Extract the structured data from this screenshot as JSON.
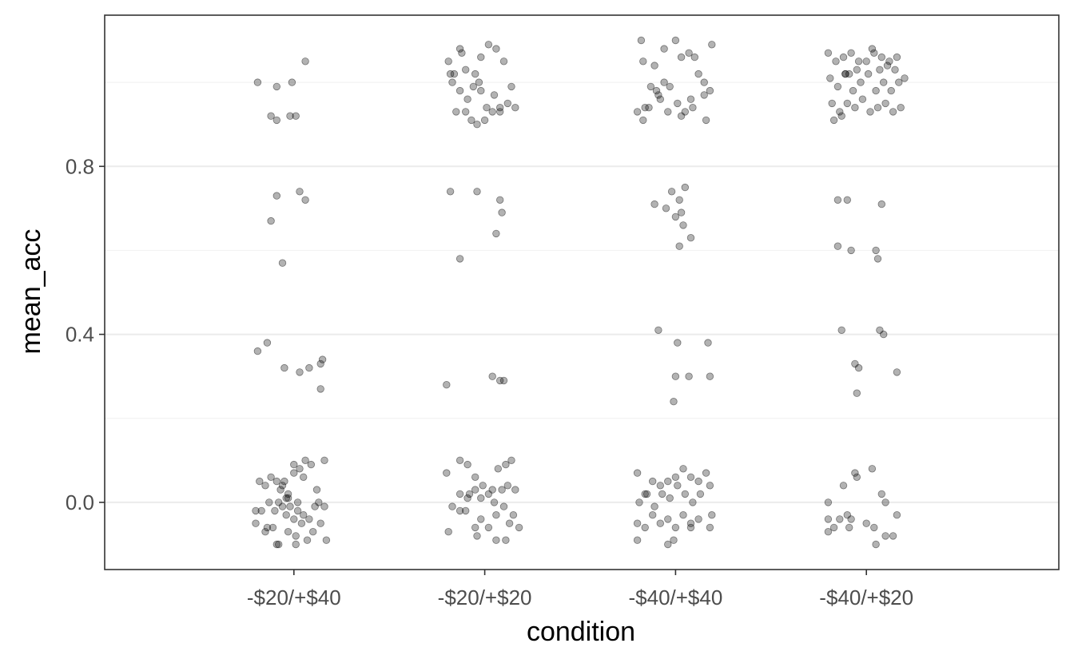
{
  "chart_data": {
    "type": "scatter",
    "xlabel": "condition",
    "ylabel": "mean_acc",
    "categories": [
      "-$20/+$40",
      "-$20/+$20",
      "-$40/+$40",
      "-$40/+$20"
    ],
    "x_jitter_unit": "category offset",
    "ylim": [
      -0.16,
      1.16
    ],
    "yticks": [
      0.0,
      0.4,
      0.8
    ],
    "y_minor_gridlines": [
      0.2,
      0.6,
      1.0
    ],
    "grid": true,
    "point_color": "#000000",
    "point_alpha": 0.3,
    "panel_border_color": "#333333",
    "major_grid_color": "#ebebeb",
    "minor_grid_color": "#f3f3f3",
    "series": [
      {
        "category": "-$20/+$40",
        "points": [
          [
            -0.19,
            1.0
          ],
          [
            0.06,
            1.05
          ],
          [
            -0.09,
            0.99
          ],
          [
            -0.01,
            1.0
          ],
          [
            -0.12,
            0.92
          ],
          [
            -0.09,
            0.91
          ],
          [
            -0.02,
            0.92
          ],
          [
            0.01,
            0.92
          ],
          [
            -0.09,
            0.73
          ],
          [
            0.03,
            0.74
          ],
          [
            0.06,
            0.72
          ],
          [
            -0.12,
            0.67
          ],
          [
            -0.06,
            0.57
          ],
          [
            -0.19,
            0.36
          ],
          [
            -0.14,
            0.38
          ],
          [
            -0.05,
            0.32
          ],
          [
            0.03,
            0.31
          ],
          [
            0.08,
            0.32
          ],
          [
            0.14,
            0.33
          ],
          [
            0.15,
            0.34
          ],
          [
            0.14,
            0.27
          ],
          [
            -0.2,
            -0.02
          ],
          [
            -0.18,
            0.05
          ],
          [
            -0.15,
            0.04
          ],
          [
            -0.12,
            0.06
          ],
          [
            -0.09,
            0.05
          ],
          [
            -0.07,
            0.03
          ],
          [
            -0.05,
            0.05
          ],
          [
            -0.03,
            0.02
          ],
          [
            0.0,
            0.09
          ],
          [
            0.03,
            0.08
          ],
          [
            0.06,
            0.1
          ],
          [
            0.09,
            0.09
          ],
          [
            0.16,
            0.1
          ],
          [
            -0.17,
            -0.02
          ],
          [
            -0.13,
            0.0
          ],
          [
            -0.1,
            -0.02
          ],
          [
            -0.08,
            0.0
          ],
          [
            -0.06,
            -0.01
          ],
          [
            -0.04,
            -0.03
          ],
          [
            -0.02,
            -0.01
          ],
          [
            0.0,
            -0.04
          ],
          [
            0.02,
            -0.02
          ],
          [
            0.05,
            -0.03
          ],
          [
            0.08,
            -0.04
          ],
          [
            0.11,
            -0.01
          ],
          [
            0.14,
            -0.05
          ],
          [
            0.16,
            -0.01
          ],
          [
            -0.2,
            -0.05
          ],
          [
            -0.15,
            -0.07
          ],
          [
            -0.11,
            -0.06
          ],
          [
            -0.08,
            -0.1
          ],
          [
            -0.03,
            -0.07
          ],
          [
            0.01,
            -0.08
          ],
          [
            0.04,
            -0.05
          ],
          [
            0.07,
            -0.09
          ],
          [
            0.1,
            -0.07
          ],
          [
            0.13,
            0.0
          ],
          [
            0.17,
            -0.09
          ],
          [
            -0.06,
            0.04
          ],
          [
            -0.03,
            0.01
          ],
          [
            0.0,
            0.07
          ],
          [
            -0.09,
            -0.1
          ],
          [
            0.01,
            -0.1
          ],
          [
            0.05,
            0.06
          ],
          [
            0.12,
            0.03
          ],
          [
            -0.14,
            -0.06
          ],
          [
            -0.04,
            0.01
          ],
          [
            0.02,
            0.0
          ]
        ]
      },
      {
        "category": "-$20/+$20",
        "points": [
          [
            -0.19,
            1.05
          ],
          [
            -0.16,
            1.02
          ],
          [
            -0.12,
            1.07
          ],
          [
            -0.1,
            1.03
          ],
          [
            -0.05,
            1.02
          ],
          [
            -0.02,
            1.06
          ],
          [
            0.02,
            1.09
          ],
          [
            0.06,
            1.08
          ],
          [
            0.1,
            1.05
          ],
          [
            0.14,
            0.99
          ],
          [
            -0.17,
            1.0
          ],
          [
            -0.13,
            0.98
          ],
          [
            -0.09,
            0.96
          ],
          [
            -0.06,
            0.99
          ],
          [
            -0.02,
            0.98
          ],
          [
            0.01,
            0.94
          ],
          [
            0.05,
            0.97
          ],
          [
            0.08,
            0.94
          ],
          [
            0.12,
            0.95
          ],
          [
            0.16,
            0.94
          ],
          [
            -0.15,
            0.93
          ],
          [
            -0.1,
            0.93
          ],
          [
            -0.07,
            0.91
          ],
          [
            -0.04,
            0.9
          ],
          [
            0.0,
            0.91
          ],
          [
            0.04,
            0.93
          ],
          [
            -0.13,
            1.08
          ],
          [
            -0.18,
            1.02
          ],
          [
            -0.03,
            1.0
          ],
          [
            0.08,
            0.93
          ],
          [
            -0.18,
            0.74
          ],
          [
            -0.04,
            0.74
          ],
          [
            0.08,
            0.72
          ],
          [
            0.09,
            0.69
          ],
          [
            0.06,
            0.64
          ],
          [
            -0.13,
            0.58
          ],
          [
            -0.2,
            0.28
          ],
          [
            0.04,
            0.3
          ],
          [
            0.08,
            0.29
          ],
          [
            0.1,
            0.29
          ],
          [
            -0.2,
            0.07
          ],
          [
            -0.13,
            0.1
          ],
          [
            -0.09,
            0.09
          ],
          [
            -0.05,
            0.06
          ],
          [
            -0.01,
            0.04
          ],
          [
            0.04,
            0.03
          ],
          [
            0.07,
            0.08
          ],
          [
            0.11,
            0.09
          ],
          [
            0.14,
            0.1
          ],
          [
            -0.17,
            -0.01
          ],
          [
            -0.13,
            0.02
          ],
          [
            -0.09,
            0.01
          ],
          [
            -0.05,
            0.03
          ],
          [
            -0.02,
            0.01
          ],
          [
            0.02,
            0.02
          ],
          [
            0.05,
            0.0
          ],
          [
            0.09,
            0.03
          ],
          [
            0.12,
            0.04
          ],
          [
            0.16,
            0.03
          ],
          [
            -0.19,
            -0.07
          ],
          [
            -0.13,
            -0.02
          ],
          [
            -0.1,
            -0.02
          ],
          [
            -0.05,
            -0.06
          ],
          [
            -0.02,
            -0.04
          ],
          [
            0.02,
            -0.06
          ],
          [
            0.06,
            -0.03
          ],
          [
            0.1,
            -0.01
          ],
          [
            0.13,
            -0.05
          ],
          [
            0.18,
            -0.06
          ],
          [
            -0.04,
            -0.08
          ],
          [
            0.06,
            -0.09
          ],
          [
            0.11,
            -0.09
          ],
          [
            0.15,
            -0.03
          ],
          [
            -0.08,
            0.02
          ]
        ]
      },
      {
        "category": "-$40/+$40",
        "points": [
          [
            -0.18,
            1.1
          ],
          [
            -0.17,
            1.05
          ],
          [
            -0.11,
            1.04
          ],
          [
            -0.06,
            1.08
          ],
          [
            0.0,
            1.1
          ],
          [
            0.03,
            1.06
          ],
          [
            0.07,
            1.07
          ],
          [
            0.1,
            1.06
          ],
          [
            0.19,
            1.09
          ],
          [
            -0.2,
            0.93
          ],
          [
            -0.16,
            0.94
          ],
          [
            -0.13,
            0.99
          ],
          [
            -0.09,
            0.97
          ],
          [
            -0.06,
            1.0
          ],
          [
            -0.03,
            0.99
          ],
          [
            0.01,
            0.95
          ],
          [
            0.05,
            0.93
          ],
          [
            0.09,
            0.94
          ],
          [
            0.12,
            1.02
          ],
          [
            0.15,
            1.0
          ],
          [
            -0.17,
            0.91
          ],
          [
            -0.14,
            0.94
          ],
          [
            -0.1,
            0.98
          ],
          [
            -0.04,
            0.93
          ],
          [
            0.03,
            0.92
          ],
          [
            0.08,
            0.96
          ],
          [
            0.15,
            0.97
          ],
          [
            0.16,
            0.91
          ],
          [
            -0.08,
            0.96
          ],
          [
            0.18,
            0.98
          ],
          [
            -0.11,
            0.71
          ],
          [
            -0.05,
            0.7
          ],
          [
            -0.02,
            0.74
          ],
          [
            0.02,
            0.72
          ],
          [
            0.05,
            0.75
          ],
          [
            0.0,
            0.68
          ],
          [
            0.03,
            0.69
          ],
          [
            0.04,
            0.66
          ],
          [
            0.08,
            0.63
          ],
          [
            0.02,
            0.61
          ],
          [
            -0.09,
            0.41
          ],
          [
            0.01,
            0.38
          ],
          [
            0.17,
            0.38
          ],
          [
            0.0,
            0.3
          ],
          [
            0.07,
            0.3
          ],
          [
            0.18,
            0.3
          ],
          [
            -0.01,
            0.24
          ],
          [
            -0.2,
            0.07
          ],
          [
            -0.16,
            0.02
          ],
          [
            -0.12,
            0.05
          ],
          [
            -0.08,
            0.04
          ],
          [
            -0.04,
            0.05
          ],
          [
            0.0,
            0.06
          ],
          [
            0.04,
            0.08
          ],
          [
            0.08,
            0.06
          ],
          [
            0.12,
            0.05
          ],
          [
            0.16,
            0.07
          ],
          [
            -0.19,
            0.0
          ],
          [
            -0.15,
            0.02
          ],
          [
            -0.11,
            -0.01
          ],
          [
            -0.07,
            0.02
          ],
          [
            -0.03,
            0.01
          ],
          [
            0.01,
            0.04
          ],
          [
            0.05,
            0.02
          ],
          [
            0.09,
            0.0
          ],
          [
            0.13,
            0.02
          ],
          [
            0.18,
            0.04
          ],
          [
            -0.2,
            -0.05
          ],
          [
            -0.16,
            -0.06
          ],
          [
            -0.12,
            -0.03
          ],
          [
            -0.08,
            -0.05
          ],
          [
            -0.04,
            -0.04
          ],
          [
            0.0,
            -0.06
          ],
          [
            0.04,
            -0.03
          ],
          [
            0.08,
            -0.06
          ],
          [
            0.12,
            -0.04
          ],
          [
            0.18,
            -0.06
          ],
          [
            -0.2,
            -0.09
          ],
          [
            -0.04,
            -0.1
          ],
          [
            -0.01,
            -0.09
          ],
          [
            0.08,
            -0.05
          ],
          [
            0.19,
            -0.03
          ]
        ]
      },
      {
        "category": "-$40/+$20",
        "points": [
          [
            -0.2,
            1.07
          ],
          [
            -0.16,
            1.05
          ],
          [
            -0.12,
            1.06
          ],
          [
            -0.08,
            1.07
          ],
          [
            -0.04,
            1.05
          ],
          [
            0.0,
            1.05
          ],
          [
            0.04,
            1.07
          ],
          [
            0.08,
            1.06
          ],
          [
            0.12,
            1.05
          ],
          [
            0.16,
            1.06
          ],
          [
            -0.19,
            1.01
          ],
          [
            -0.15,
            0.99
          ],
          [
            -0.11,
            1.02
          ],
          [
            -0.07,
            0.98
          ],
          [
            -0.03,
            1.0
          ],
          [
            0.01,
            1.02
          ],
          [
            0.05,
            0.98
          ],
          [
            0.09,
            1.0
          ],
          [
            0.13,
            0.98
          ],
          [
            0.17,
            1.0
          ],
          [
            -0.18,
            0.95
          ],
          [
            -0.14,
            0.93
          ],
          [
            -0.1,
            0.95
          ],
          [
            -0.06,
            0.94
          ],
          [
            -0.02,
            0.96
          ],
          [
            0.02,
            0.93
          ],
          [
            0.06,
            0.94
          ],
          [
            0.1,
            0.95
          ],
          [
            0.14,
            0.93
          ],
          [
            0.18,
            0.94
          ],
          [
            -0.17,
            0.91
          ],
          [
            -0.13,
            0.92
          ],
          [
            -0.09,
            1.02
          ],
          [
            -0.05,
            1.03
          ],
          [
            0.03,
            1.08
          ],
          [
            0.07,
            1.03
          ],
          [
            0.11,
            1.04
          ],
          [
            0.15,
            1.03
          ],
          [
            -0.11,
            1.02
          ],
          [
            0.2,
            1.01
          ],
          [
            -0.15,
            0.72
          ],
          [
            -0.1,
            0.72
          ],
          [
            0.08,
            0.71
          ],
          [
            -0.15,
            0.61
          ],
          [
            -0.08,
            0.6
          ],
          [
            0.05,
            0.6
          ],
          [
            0.06,
            0.58
          ],
          [
            -0.13,
            0.41
          ],
          [
            0.07,
            0.41
          ],
          [
            0.09,
            0.4
          ],
          [
            -0.06,
            0.33
          ],
          [
            -0.04,
            0.32
          ],
          [
            0.16,
            0.31
          ],
          [
            -0.05,
            0.26
          ],
          [
            -0.2,
            0.0
          ],
          [
            -0.12,
            0.04
          ],
          [
            -0.06,
            0.07
          ],
          [
            -0.05,
            0.06
          ],
          [
            0.03,
            0.08
          ],
          [
            0.08,
            0.02
          ],
          [
            0.1,
            0.0
          ],
          [
            -0.2,
            -0.04
          ],
          [
            -0.17,
            -0.06
          ],
          [
            -0.14,
            -0.04
          ],
          [
            -0.09,
            -0.06
          ],
          [
            -0.1,
            -0.03
          ],
          [
            -0.08,
            -0.04
          ],
          [
            0.0,
            -0.05
          ],
          [
            0.04,
            -0.06
          ],
          [
            0.1,
            -0.08
          ],
          [
            0.14,
            -0.08
          ],
          [
            0.16,
            -0.03
          ],
          [
            0.05,
            -0.1
          ],
          [
            -0.2,
            -0.07
          ]
        ]
      }
    ]
  }
}
